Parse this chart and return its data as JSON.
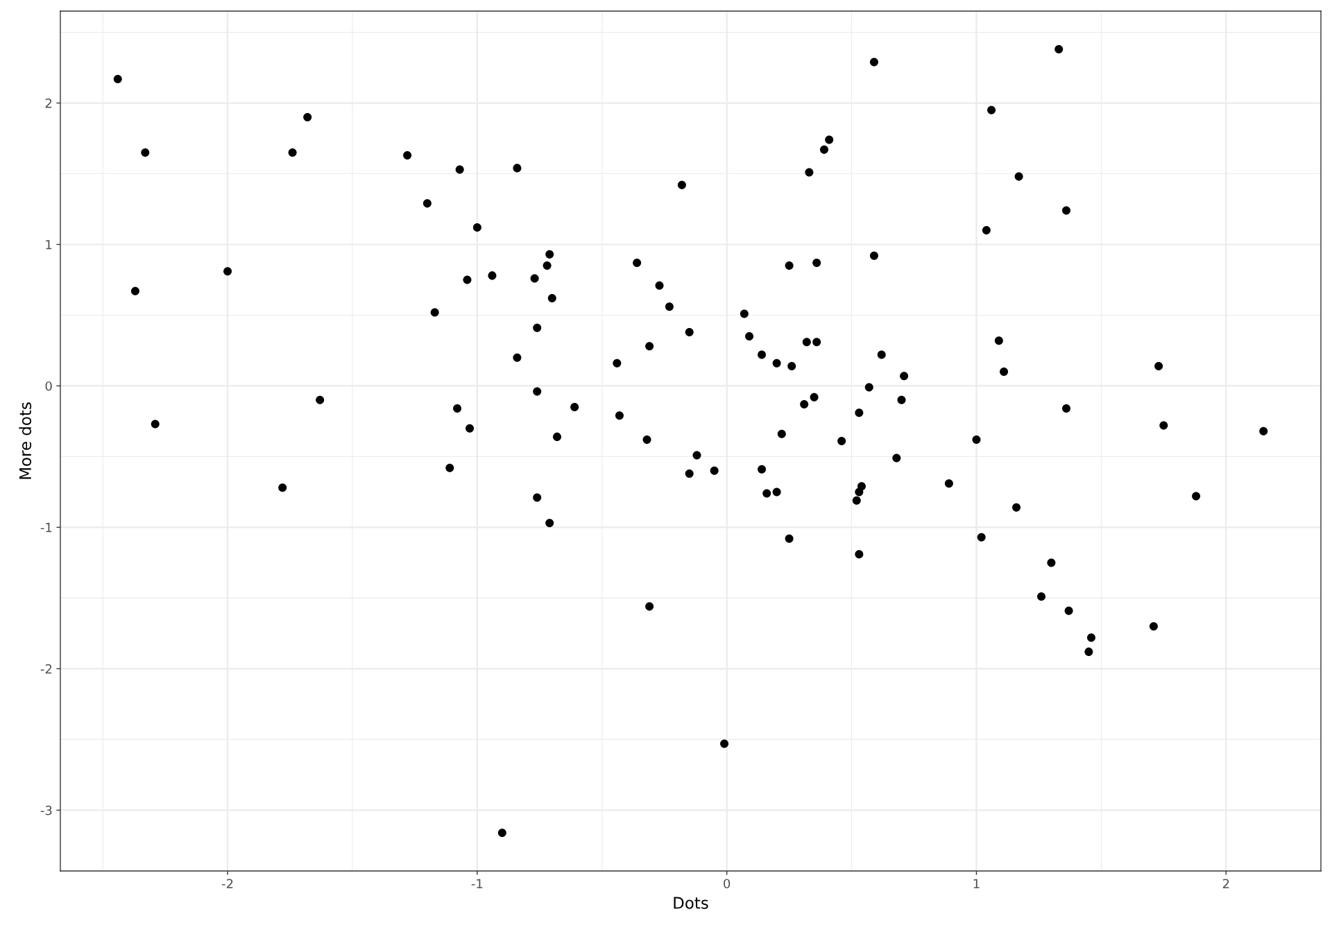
{
  "chart_data": {
    "type": "scatter",
    "xlabel": "Dots",
    "ylabel": "More dots",
    "x": [
      -2.44,
      -2.33,
      -2.37,
      -2.29,
      -2.0,
      -1.68,
      -1.74,
      -1.63,
      -1.78,
      -1.28,
      -1.2,
      -1.07,
      -1.0,
      -1.04,
      -1.17,
      -1.08,
      -1.03,
      -1.11,
      -0.94,
      -0.84,
      -0.84,
      -0.9,
      -0.71,
      -0.72,
      -0.77,
      -0.7,
      -0.76,
      -0.76,
      -0.68,
      -0.61,
      -0.76,
      -0.71,
      -0.44,
      -0.43,
      -0.36,
      -0.27,
      -0.23,
      -0.31,
      -0.32,
      -0.31,
      -0.18,
      -0.15,
      -0.15,
      -0.12,
      -0.05,
      -0.01,
      0.07,
      0.09,
      0.14,
      0.14,
      0.16,
      0.2,
      0.2,
      0.26,
      0.22,
      0.25,
      0.25,
      0.33,
      0.39,
      0.41,
      0.36,
      0.32,
      0.36,
      0.35,
      0.31,
      0.46,
      0.59,
      0.59,
      0.62,
      0.57,
      0.53,
      0.7,
      0.71,
      0.68,
      0.54,
      0.53,
      0.52,
      0.53,
      0.89,
      1.0,
      1.02,
      1.04,
      1.06,
      1.17,
      1.09,
      1.11,
      1.16,
      1.33,
      1.36,
      1.36,
      1.3,
      1.26,
      1.37,
      1.46,
      1.45,
      1.73,
      1.75,
      1.71,
      1.88,
      2.15
    ],
    "series": [
      {
        "color": "#000000",
        "values": [
          2.17,
          1.65,
          0.67,
          -0.27,
          0.81,
          1.9,
          1.65,
          -0.1,
          -0.72,
          1.63,
          1.29,
          1.53,
          1.12,
          0.75,
          0.52,
          -0.16,
          -0.3,
          -0.58,
          0.78,
          1.54,
          0.2,
          -3.16,
          0.93,
          0.85,
          0.76,
          0.62,
          0.41,
          -0.04,
          -0.36,
          -0.15,
          -0.79,
          -0.97,
          0.16,
          -0.21,
          0.87,
          0.71,
          0.56,
          0.28,
          -0.38,
          -1.56,
          1.42,
          0.38,
          -0.62,
          -0.49,
          -0.6,
          -2.53,
          0.51,
          0.35,
          0.22,
          -0.59,
          -0.76,
          -0.75,
          0.16,
          0.14,
          -0.34,
          0.85,
          -1.08,
          1.51,
          1.67,
          1.74,
          0.87,
          0.31,
          0.31,
          -0.08,
          -0.13,
          -0.39,
          2.29,
          0.92,
          0.22,
          -0.01,
          -0.19,
          -0.1,
          0.07,
          -0.51,
          -0.71,
          -0.75,
          -0.81,
          -1.19,
          -0.69,
          -0.38,
          -1.07,
          1.1,
          1.95,
          1.48,
          0.32,
          0.1,
          -0.86,
          2.38,
          1.24,
          -0.16,
          -1.25,
          -1.49,
          -1.59,
          -1.78,
          -1.88,
          0.14,
          -0.28,
          -1.7,
          -0.78,
          -0.32
        ]
      }
    ],
    "marker": "circle",
    "grid": true,
    "xlim": [
      -2.67,
      2.38
    ],
    "ylim": [
      -3.43,
      2.65
    ],
    "xticks": [
      -2,
      -1,
      0,
      1,
      2
    ],
    "yticks": [
      -3,
      -2,
      -1,
      0,
      1,
      2
    ]
  }
}
